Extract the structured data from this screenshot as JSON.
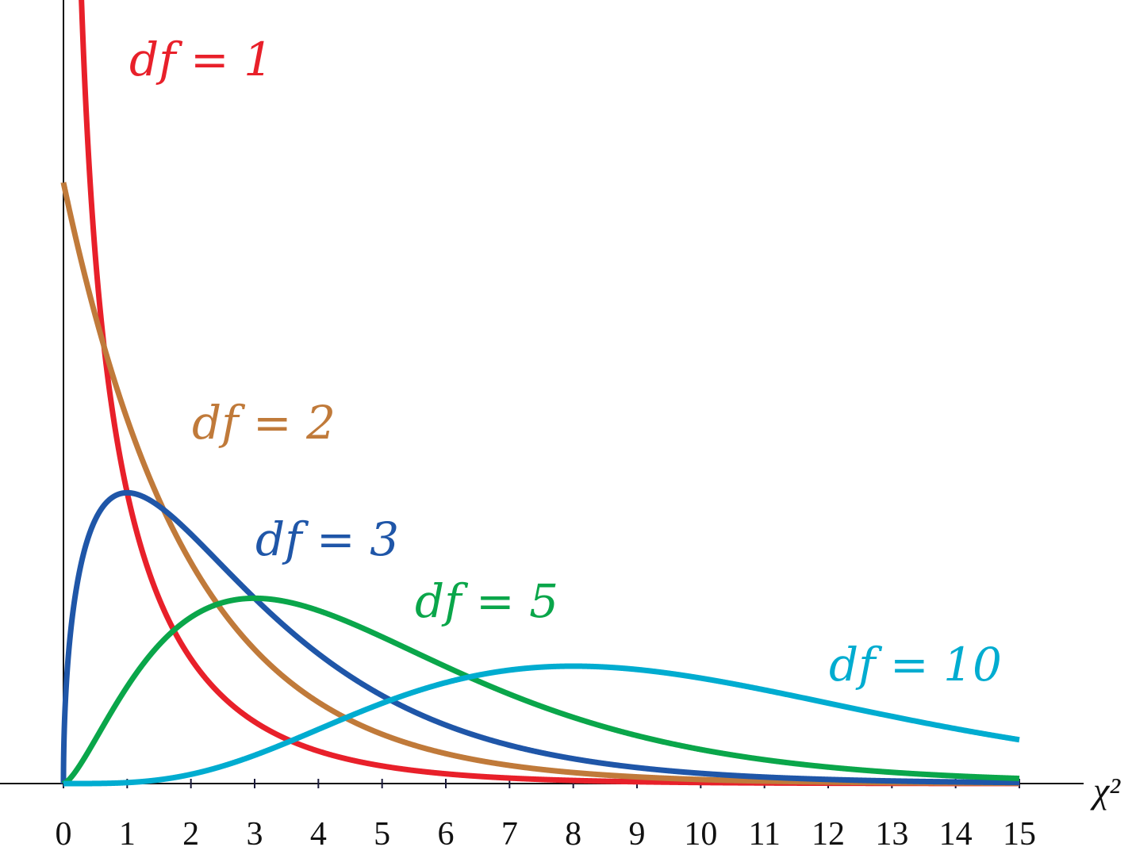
{
  "chart_data": {
    "type": "line",
    "title": "",
    "xlabel": "χ²",
    "ylabel": "",
    "xlim": [
      0,
      15
    ],
    "ylim": [
      0,
      0.652
    ],
    "grid": false,
    "x_ticks": [
      "0",
      "1",
      "2",
      "3",
      "4",
      "5",
      "6",
      "7",
      "8",
      "9",
      "10",
      "11",
      "12",
      "13",
      "14",
      "15"
    ],
    "x": [
      0,
      1,
      2,
      3,
      4,
      5,
      6,
      7,
      8,
      9,
      10,
      11,
      12,
      13,
      14,
      15
    ],
    "series": [
      {
        "name": "df = 1",
        "df": 1,
        "color": "#e8202a",
        "values": [
          null,
          0.242,
          0.104,
          0.051,
          0.027,
          0.015,
          0.008,
          0.005,
          0.003,
          0.002,
          0.001,
          0.0005,
          0.0003,
          0.0002,
          0.0001,
          0.0001
        ]
      },
      {
        "name": "df = 2",
        "df": 2,
        "color": "#c07a3a",
        "values": [
          0.5,
          0.303,
          0.184,
          0.112,
          0.068,
          0.041,
          0.025,
          0.015,
          0.009,
          0.006,
          0.003,
          0.002,
          0.001,
          0.001,
          0.0005,
          0.0003
        ]
      },
      {
        "name": "df = 3",
        "df": 3,
        "color": "#1f56a8",
        "values": [
          0,
          0.242,
          0.208,
          0.154,
          0.108,
          0.073,
          0.049,
          0.032,
          0.021,
          0.013,
          0.008,
          0.005,
          0.004,
          0.002,
          0.001,
          0.001
        ]
      },
      {
        "name": "df = 5",
        "df": 5,
        "color": "#0aa64a",
        "values": [
          0,
          0.081,
          0.138,
          0.154,
          0.144,
          0.122,
          0.097,
          0.074,
          0.055,
          0.04,
          0.028,
          0.02,
          0.014,
          0.009,
          0.006,
          0.004
        ]
      },
      {
        "name": "df = 10",
        "df": 10,
        "color": "#00acd0",
        "values": [
          0,
          0.001,
          0.008,
          0.024,
          0.045,
          0.067,
          0.084,
          0.094,
          0.098,
          0.095,
          0.088,
          0.078,
          0.067,
          0.056,
          0.046,
          0.037
        ]
      }
    ]
  }
}
